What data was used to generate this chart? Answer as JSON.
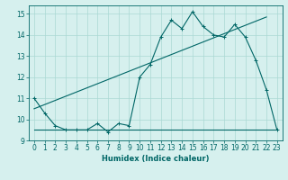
{
  "title": "",
  "xlabel": "Humidex (Indice chaleur)",
  "bg_color": "#d6f0ee",
  "line_color": "#006666",
  "grid_color": "#aad8d4",
  "xlim": [
    -0.5,
    23.5
  ],
  "ylim": [
    9.0,
    15.4
  ],
  "xticks": [
    0,
    1,
    2,
    3,
    4,
    5,
    6,
    7,
    8,
    9,
    10,
    11,
    12,
    13,
    14,
    15,
    16,
    17,
    18,
    19,
    20,
    21,
    22,
    23
  ],
  "yticks": [
    9,
    10,
    11,
    12,
    13,
    14,
    15
  ],
  "line1_x": [
    0,
    1,
    2,
    3,
    4,
    5,
    6,
    7,
    8,
    9,
    10,
    11,
    12,
    13,
    14,
    15,
    16,
    17,
    18,
    19,
    20,
    21,
    22,
    23
  ],
  "line1_y": [
    11.0,
    10.3,
    9.7,
    9.5,
    9.5,
    9.5,
    9.8,
    9.4,
    9.8,
    9.7,
    12.0,
    12.6,
    13.9,
    14.7,
    14.3,
    15.1,
    14.4,
    14.0,
    13.9,
    14.5,
    13.9,
    12.8,
    11.4,
    9.5
  ],
  "line2_x": [
    0,
    23
  ],
  "line2_y": [
    9.5,
    9.5
  ],
  "line3_x": [
    0,
    22
  ],
  "line3_y": [
    10.5,
    14.85
  ]
}
